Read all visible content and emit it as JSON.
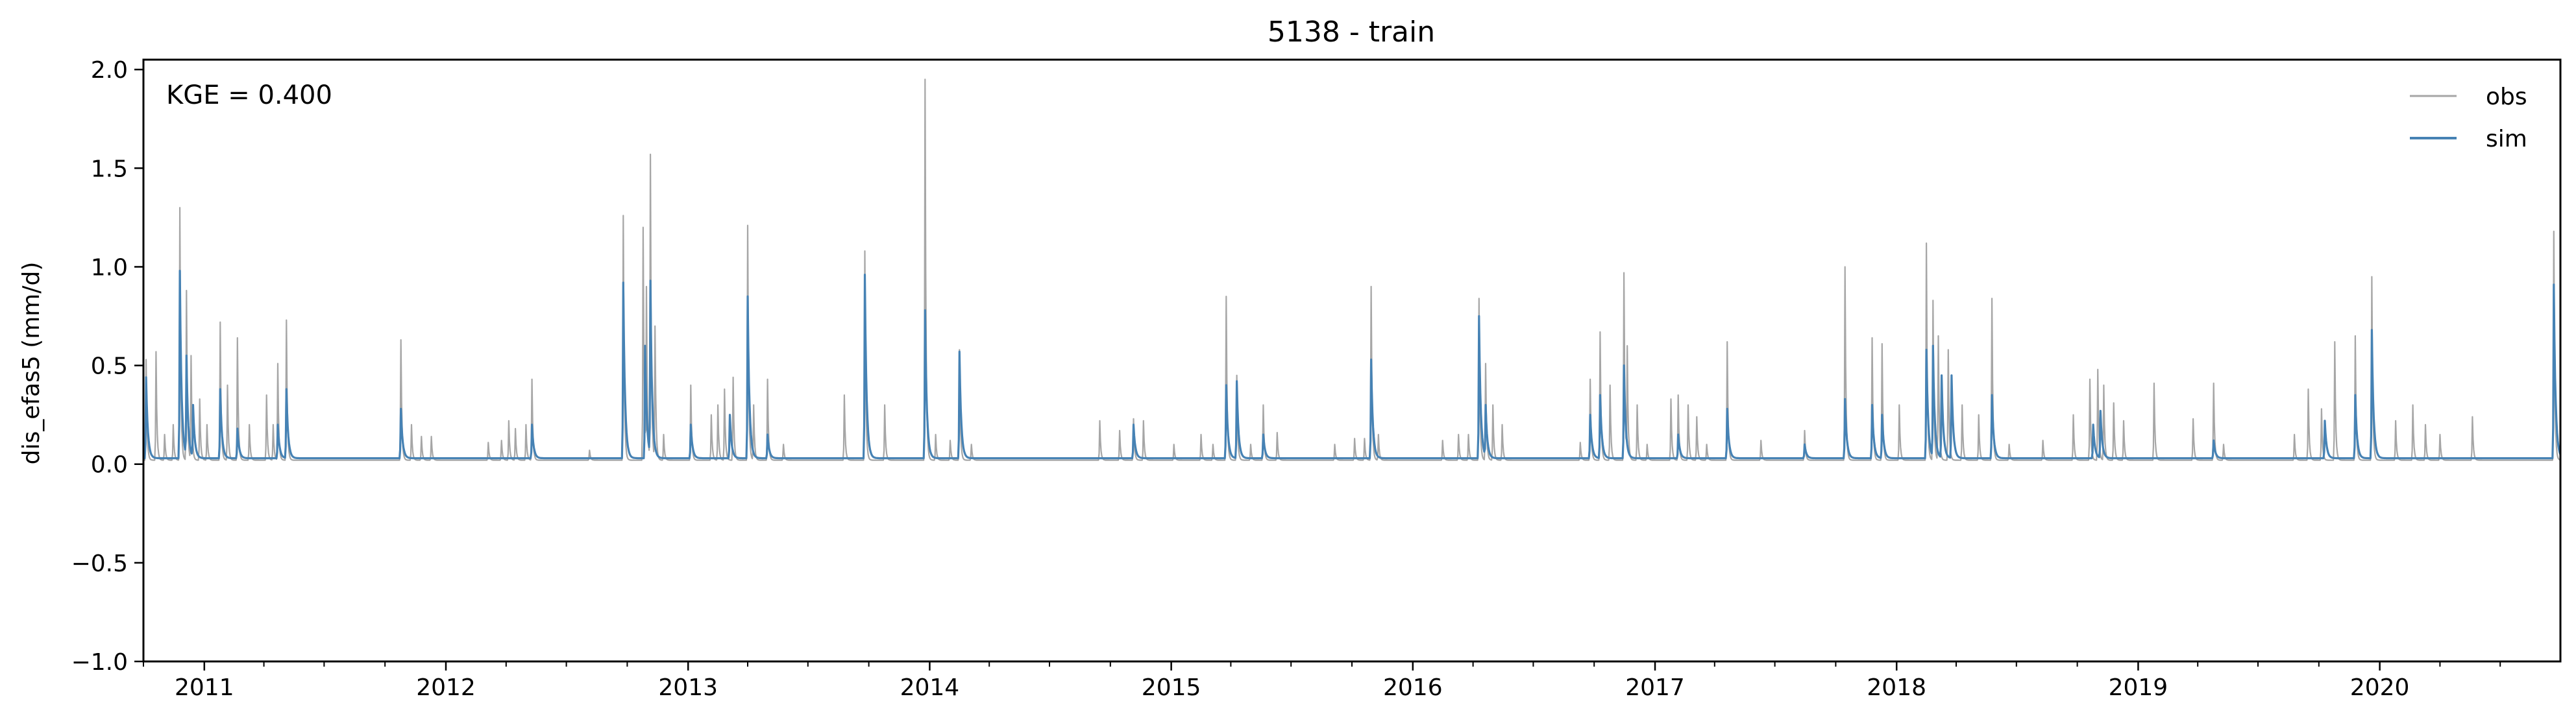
{
  "chart_data": {
    "type": "line",
    "title": "5138 - train",
    "xlabel": "",
    "ylabel": "dis_efas5 (mm/d)",
    "xlim": [
      "2010-10-01",
      "2020-09-30"
    ],
    "ylim": [
      -1.0,
      2.05
    ],
    "xticks": [
      "2011",
      "2012",
      "2013",
      "2014",
      "2015",
      "2016",
      "2017",
      "2018",
      "2019",
      "2020"
    ],
    "yticks": [
      -1.0,
      -0.5,
      0.0,
      0.5,
      1.0,
      1.5,
      2.0
    ],
    "ytick_labels": [
      "−1.0",
      "−0.5",
      "0.0",
      "0.5",
      "1.0",
      "1.5",
      "2.0"
    ],
    "annotation": "KGE = 0.400",
    "legend_position": "top-right",
    "grid": false,
    "baseline": {
      "obs": 0.02,
      "sim": 0.03
    },
    "series": [
      {
        "name": "obs",
        "color": "#a6a6a6",
        "peaks": [
          [
            "2010-10-05",
            0.53
          ],
          [
            "2010-10-20",
            0.57
          ],
          [
            "2010-11-02",
            0.15
          ],
          [
            "2010-11-15",
            0.2
          ],
          [
            "2010-11-25",
            1.3
          ],
          [
            "2010-12-05",
            0.88
          ],
          [
            "2010-12-12",
            0.55
          ],
          [
            "2010-12-25",
            0.33
          ],
          [
            "2011-01-05",
            0.2
          ],
          [
            "2011-01-25",
            0.72
          ],
          [
            "2011-02-05",
            0.4
          ],
          [
            "2011-02-20",
            0.64
          ],
          [
            "2011-03-10",
            0.2
          ],
          [
            "2011-04-05",
            0.35
          ],
          [
            "2011-04-15",
            0.2
          ],
          [
            "2011-04-22",
            0.51
          ],
          [
            "2011-05-05",
            0.73
          ],
          [
            "2011-10-25",
            0.63
          ],
          [
            "2011-11-10",
            0.2
          ],
          [
            "2011-11-25",
            0.14
          ],
          [
            "2011-12-10",
            0.14
          ],
          [
            "2012-03-05",
            0.11
          ],
          [
            "2012-03-25",
            0.12
          ],
          [
            "2012-04-05",
            0.22
          ],
          [
            "2012-04-15",
            0.18
          ],
          [
            "2012-05-01",
            0.2
          ],
          [
            "2012-05-10",
            0.43
          ],
          [
            "2012-08-05",
            0.07
          ],
          [
            "2012-09-25",
            1.26
          ],
          [
            "2012-10-25",
            1.2
          ],
          [
            "2012-10-30",
            0.9
          ],
          [
            "2012-11-05",
            1.57
          ],
          [
            "2012-11-12",
            0.7
          ],
          [
            "2012-11-25",
            0.15
          ],
          [
            "2013-01-05",
            0.4
          ],
          [
            "2013-02-05",
            0.25
          ],
          [
            "2013-02-15",
            0.3
          ],
          [
            "2013-02-25",
            0.38
          ],
          [
            "2013-03-10",
            0.44
          ],
          [
            "2013-04-01",
            1.21
          ],
          [
            "2013-04-10",
            0.3
          ],
          [
            "2013-05-01",
            0.43
          ],
          [
            "2013-05-25",
            0.1
          ],
          [
            "2013-08-25",
            0.35
          ],
          [
            "2013-09-25",
            1.08
          ],
          [
            "2013-10-25",
            0.3
          ],
          [
            "2013-12-25",
            1.95
          ],
          [
            "2014-01-10",
            0.15
          ],
          [
            "2014-02-01",
            0.12
          ],
          [
            "2014-02-15",
            0.58
          ],
          [
            "2014-03-05",
            0.1
          ],
          [
            "2014-09-15",
            0.22
          ],
          [
            "2014-10-15",
            0.17
          ],
          [
            "2014-11-05",
            0.23
          ],
          [
            "2014-11-20",
            0.22
          ],
          [
            "2015-01-05",
            0.1
          ],
          [
            "2015-02-15",
            0.15
          ],
          [
            "2015-03-05",
            0.1
          ],
          [
            "2015-03-25",
            0.85
          ],
          [
            "2015-04-10",
            0.45
          ],
          [
            "2015-05-01",
            0.1
          ],
          [
            "2015-05-20",
            0.3
          ],
          [
            "2015-06-10",
            0.16
          ],
          [
            "2015-09-05",
            0.1
          ],
          [
            "2015-10-05",
            0.13
          ],
          [
            "2015-10-20",
            0.13
          ],
          [
            "2015-10-30",
            0.9
          ],
          [
            "2015-11-10",
            0.15
          ],
          [
            "2016-02-15",
            0.12
          ],
          [
            "2016-03-10",
            0.15
          ],
          [
            "2016-03-25",
            0.15
          ],
          [
            "2016-04-10",
            0.84
          ],
          [
            "2016-04-20",
            0.51
          ],
          [
            "2016-05-01",
            0.3
          ],
          [
            "2016-05-15",
            0.2
          ],
          [
            "2016-09-10",
            0.11
          ],
          [
            "2016-09-25",
            0.43
          ],
          [
            "2016-10-10",
            0.67
          ],
          [
            "2016-10-25",
            0.4
          ],
          [
            "2016-11-15",
            0.97
          ],
          [
            "2016-11-20",
            0.6
          ],
          [
            "2016-12-05",
            0.3
          ],
          [
            "2016-12-20",
            0.1
          ],
          [
            "2017-01-25",
            0.33
          ],
          [
            "2017-02-05",
            0.35
          ],
          [
            "2017-02-20",
            0.3
          ],
          [
            "2017-03-05",
            0.24
          ],
          [
            "2017-03-20",
            0.1
          ],
          [
            "2017-04-20",
            0.62
          ],
          [
            "2017-06-10",
            0.12
          ],
          [
            "2017-08-15",
            0.17
          ],
          [
            "2017-10-15",
            1.0
          ],
          [
            "2017-11-25",
            0.64
          ],
          [
            "2017-12-10",
            0.61
          ],
          [
            "2018-01-05",
            0.3
          ],
          [
            "2018-02-15",
            1.12
          ],
          [
            "2018-02-25",
            0.83
          ],
          [
            "2018-03-05",
            0.65
          ],
          [
            "2018-03-20",
            0.58
          ],
          [
            "2018-04-10",
            0.3
          ],
          [
            "2018-05-05",
            0.25
          ],
          [
            "2018-05-25",
            0.84
          ],
          [
            "2018-06-20",
            0.1
          ],
          [
            "2018-08-10",
            0.12
          ],
          [
            "2018-09-25",
            0.25
          ],
          [
            "2018-10-20",
            0.43
          ],
          [
            "2018-11-01",
            0.48
          ],
          [
            "2018-11-10",
            0.4
          ],
          [
            "2018-11-25",
            0.31
          ],
          [
            "2018-12-10",
            0.22
          ],
          [
            "2019-01-25",
            0.41
          ],
          [
            "2019-03-25",
            0.23
          ],
          [
            "2019-04-25",
            0.41
          ],
          [
            "2019-05-10",
            0.1
          ],
          [
            "2019-08-25",
            0.15
          ],
          [
            "2019-09-15",
            0.38
          ],
          [
            "2019-10-05",
            0.28
          ],
          [
            "2019-10-25",
            0.62
          ],
          [
            "2019-11-25",
            0.65
          ],
          [
            "2019-12-20",
            0.95
          ],
          [
            "2020-01-25",
            0.22
          ],
          [
            "2020-02-20",
            0.3
          ],
          [
            "2020-03-10",
            0.2
          ],
          [
            "2020-04-01",
            0.15
          ],
          [
            "2020-05-20",
            0.24
          ],
          [
            "2020-09-20",
            1.18
          ]
        ]
      },
      {
        "name": "sim",
        "color": "#4682b4",
        "peaks": [
          [
            "2010-10-05",
            0.44
          ],
          [
            "2010-11-25",
            0.98
          ],
          [
            "2010-12-05",
            0.55
          ],
          [
            "2010-12-15",
            0.3
          ],
          [
            "2011-01-25",
            0.38
          ],
          [
            "2011-02-20",
            0.18
          ],
          [
            "2011-04-22",
            0.2
          ],
          [
            "2011-05-05",
            0.38
          ],
          [
            "2011-10-25",
            0.28
          ],
          [
            "2012-05-10",
            0.2
          ],
          [
            "2012-09-25",
            0.92
          ],
          [
            "2012-11-05",
            0.93
          ],
          [
            "2012-10-28",
            0.6
          ],
          [
            "2013-01-05",
            0.2
          ],
          [
            "2013-03-05",
            0.25
          ],
          [
            "2013-04-01",
            0.85
          ],
          [
            "2013-05-01",
            0.15
          ],
          [
            "2013-09-25",
            0.96
          ],
          [
            "2013-12-25",
            0.78
          ],
          [
            "2014-02-15",
            0.57
          ],
          [
            "2014-11-05",
            0.2
          ],
          [
            "2015-03-25",
            0.4
          ],
          [
            "2015-04-10",
            0.42
          ],
          [
            "2015-05-20",
            0.15
          ],
          [
            "2015-10-30",
            0.53
          ],
          [
            "2016-04-10",
            0.75
          ],
          [
            "2016-04-20",
            0.3
          ],
          [
            "2016-09-25",
            0.25
          ],
          [
            "2016-10-10",
            0.35
          ],
          [
            "2016-11-15",
            0.5
          ],
          [
            "2017-02-05",
            0.15
          ],
          [
            "2017-04-20",
            0.28
          ],
          [
            "2017-08-15",
            0.1
          ],
          [
            "2017-10-15",
            0.33
          ],
          [
            "2017-11-25",
            0.3
          ],
          [
            "2017-12-10",
            0.25
          ],
          [
            "2018-02-15",
            0.58
          ],
          [
            "2018-02-25",
            0.6
          ],
          [
            "2018-03-10",
            0.45
          ],
          [
            "2018-03-25",
            0.45
          ],
          [
            "2018-05-25",
            0.35
          ],
          [
            "2018-10-25",
            0.2
          ],
          [
            "2018-11-05",
            0.27
          ],
          [
            "2019-04-25",
            0.12
          ],
          [
            "2019-10-10",
            0.22
          ],
          [
            "2019-11-25",
            0.35
          ],
          [
            "2019-12-20",
            0.68
          ],
          [
            "2020-09-20",
            0.91
          ]
        ]
      }
    ]
  }
}
